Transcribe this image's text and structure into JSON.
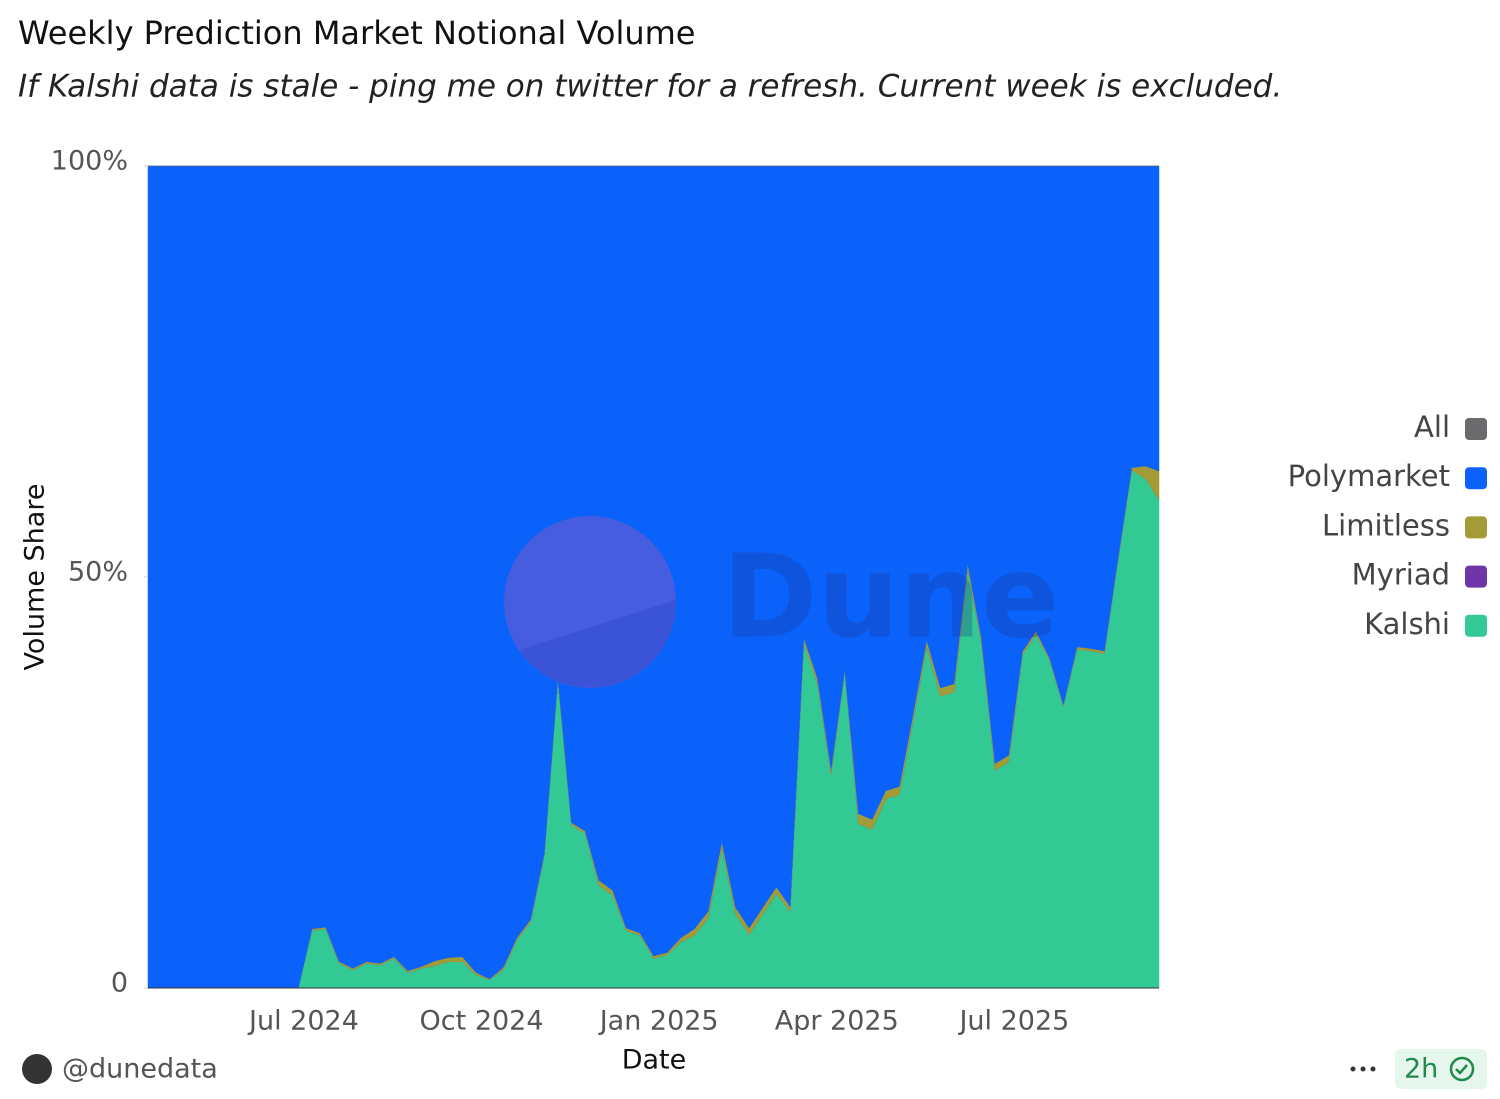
{
  "chart_data": {
    "type": "area",
    "stacking": "percent",
    "title": "Weekly Prediction Market Notional Volume",
    "subtitle": "If Kalshi data is stale - ping me on twitter for a refresh. Current week is excluded.",
    "x_label": "Date",
    "y_label": "Volume Share",
    "watermark": "Dune",
    "categories": [
      null,
      null,
      null,
      null,
      null,
      null,
      null,
      null,
      null,
      null,
      null,
      null,
      "Jul 2024",
      null,
      null,
      null,
      null,
      null,
      null,
      null,
      null,
      null,
      null,
      null,
      null,
      "Oct 2024",
      null,
      null,
      null,
      null,
      null,
      null,
      null,
      null,
      null,
      null,
      null,
      null,
      "Jan 2025",
      null,
      null,
      null,
      null,
      null,
      null,
      null,
      null,
      null,
      null,
      null,
      null,
      "Apr 2025",
      null,
      null,
      null,
      null,
      null,
      null,
      null,
      null,
      null,
      null,
      null,
      null,
      "Jul 2025",
      null,
      null,
      null,
      null,
      null,
      null,
      null,
      null,
      null,
      null
    ],
    "series": [
      {
        "name": "All",
        "color": "#6b6b6e",
        "values": [
          0,
          0,
          0,
          0,
          0,
          0,
          0,
          0,
          0,
          0,
          0,
          0,
          0,
          0,
          0,
          0,
          0,
          0,
          0,
          0,
          0,
          0,
          0,
          0,
          0,
          0,
          0,
          0,
          0,
          0,
          0,
          0,
          0,
          0,
          0,
          0,
          0,
          0,
          0,
          0,
          0,
          0,
          0,
          0,
          0,
          0,
          0,
          0,
          0,
          0,
          0,
          0,
          0,
          0,
          0,
          0,
          0,
          0,
          0,
          0,
          0,
          0,
          0,
          0,
          0,
          0,
          0,
          0,
          0,
          0,
          0,
          0,
          0,
          0,
          0
        ]
      },
      {
        "name": "Polymarket",
        "color": "#0b62fb",
        "values": [
          100,
          100,
          100,
          100,
          100,
          100,
          100,
          100,
          100,
          100,
          100,
          100,
          92.8,
          92.6,
          96.8,
          97.6,
          96.8,
          97,
          96.2,
          97.9,
          97.4,
          96.7,
          96.3,
          96.2,
          98.1,
          98.9,
          97.5,
          93.9,
          91.7,
          83.7,
          62.2,
          79.9,
          80.9,
          86.9,
          88.1,
          92.7,
          93.3,
          96.1,
          95.7,
          93.9,
          92.8,
          90.7,
          82.2,
          90.2,
          92.7,
          90.2,
          87.7,
          90.1,
          57.4,
          62.3,
          73.4,
          61.2,
          78.8,
          79.5,
          76,
          75.5,
          66.7,
          57.7,
          63.5,
          63,
          48.4,
          57.4,
          72.7,
          71.7,
          59.1,
          56.6,
          59.9,
          65.5,
          58.5,
          58.7,
          59,
          47.7,
          36.7,
          36.5,
          37.1
        ]
      },
      {
        "name": "Limitless",
        "color": "#a39b35",
        "values": [
          0,
          0,
          0,
          0,
          0,
          0,
          0,
          0,
          0,
          0,
          0,
          0,
          0.2,
          0.2,
          0.2,
          0.2,
          0.2,
          0.2,
          0.2,
          0.2,
          0.2,
          0.6,
          0.5,
          0.6,
          0.3,
          0.1,
          0.3,
          0.3,
          0.3,
          0.3,
          0.3,
          0.3,
          0.3,
          0.6,
          0.6,
          0.3,
          0.3,
          0.3,
          0.3,
          0.5,
          0.8,
          0.8,
          0.8,
          0.8,
          0.8,
          0.8,
          0.8,
          0.6,
          0.6,
          0.7,
          0.6,
          0.3,
          1.2,
          1.2,
          1,
          1,
          0.8,
          0.8,
          1,
          1,
          0.8,
          0.6,
          0.8,
          0.8,
          0.4,
          0.4,
          0.3,
          0.2,
          0.3,
          0.3,
          0.3,
          0.3,
          0.3,
          1.5,
          3.5
        ]
      },
      {
        "name": "Myriad",
        "color": "#6e35a8",
        "values": [
          0,
          0,
          0,
          0,
          0,
          0,
          0,
          0,
          0,
          0,
          0,
          0,
          0,
          0,
          0,
          0,
          0,
          0,
          0,
          0,
          0,
          0,
          0,
          0,
          0,
          0,
          0,
          0,
          0,
          0,
          0,
          0,
          0,
          0,
          0,
          0,
          0,
          0,
          0,
          0,
          0,
          0,
          0,
          0,
          0,
          0,
          0,
          0,
          0,
          0,
          0,
          0,
          0,
          0,
          0,
          0,
          0,
          0,
          0,
          0,
          0,
          0,
          0,
          0,
          0,
          0,
          0,
          0,
          0,
          0,
          0,
          0,
          0,
          0,
          0
        ]
      },
      {
        "name": "Kalshi",
        "color": "#33c994",
        "values": [
          0,
          0,
          0,
          0,
          0,
          0,
          0,
          0,
          0,
          0,
          0,
          0,
          7,
          7.2,
          3,
          2.2,
          3,
          2.8,
          3.6,
          1.9,
          2.4,
          2.7,
          3.2,
          3.2,
          1.6,
          1,
          2.2,
          5.8,
          8,
          16,
          37.5,
          19.8,
          18.8,
          12.5,
          11.3,
          7,
          6.4,
          3.6,
          4,
          5.6,
          6.4,
          8.5,
          17,
          9,
          6.5,
          9,
          11.5,
          9.3,
          42,
          37,
          26,
          38.5,
          20,
          19.3,
          23,
          23.5,
          32.5,
          41.5,
          35.5,
          36,
          50.8,
          42,
          26.5,
          27.5,
          40.5,
          43,
          39.8,
          34.3,
          41.2,
          41,
          40.7,
          52,
          63,
          62,
          59.4
        ]
      }
    ],
    "ylim": [
      0,
      100
    ],
    "yticks": [
      0,
      {
        "value": 50,
        "label": "50%"
      },
      {
        "value": 100,
        "label": "100%"
      }
    ],
    "legend": "right"
  },
  "footer": {
    "author": "@dunedata",
    "age": "2h"
  }
}
